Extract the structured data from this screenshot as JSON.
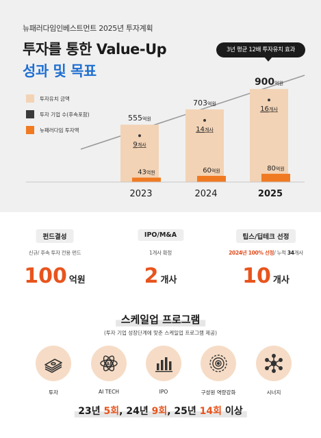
{
  "header": {
    "company": "뉴패러다임인베스트먼트 2025년 투자계획",
    "title_line1": "투자를 통한 Value-Up",
    "title_line2": "성과 및 목표",
    "callout": "3년 평균 12배 투자유치 효과"
  },
  "legend": [
    {
      "label": "투자유치 금액",
      "color": "#f3d3b5"
    },
    {
      "label": "투자 기업 수(후속포함)",
      "color": "#3a3a3a"
    },
    {
      "label": "뉴패러다임 투자액",
      "color": "#f07a22"
    }
  ],
  "chart_data": {
    "type": "bar",
    "categories": [
      "2023",
      "2024",
      "2025"
    ],
    "series": [
      {
        "name": "투자유치 금액",
        "values": [
          555,
          703,
          900
        ],
        "labels": [
          "555억원",
          "703억원",
          "900억원"
        ],
        "color": "#f3d3b5"
      },
      {
        "name": "투자 기업 수(후속포함)",
        "values": [
          9,
          14,
          16
        ],
        "labels": [
          "9개사",
          "14개사",
          "16개사"
        ],
        "color": "#3a3a3a"
      },
      {
        "name": "뉴패러다임 투자액",
        "values": [
          43,
          60,
          80
        ],
        "labels": [
          "43억원",
          "60억원",
          "80억원"
        ],
        "color": "#f07a22"
      }
    ],
    "title": "",
    "xlabel": "",
    "ylabel": "",
    "ylim": [
      0,
      1000
    ],
    "grid": false,
    "legend_position": "left"
  },
  "cards": [
    {
      "head": "펀드결성",
      "sub": "신규/ 후속 투자 전용 펀드",
      "num": "100",
      "unit": "억원"
    },
    {
      "head": "IPO/M&A",
      "sub": "1개사 확정",
      "num": "2",
      "unit": "개사"
    },
    {
      "head": "팁스/딥테크 선정",
      "sub_hl": "2024년 100% 선정",
      "sub_mid": "/ 누적 ",
      "sub_bk": "34",
      "sub_end": "개사",
      "num": "10",
      "unit": "개사"
    }
  ],
  "program": {
    "title": "스케일업 프로그램",
    "subtitle": "(투자 기업 성장단계에 맞춘 스케일업 프로그램 제공)",
    "items": [
      {
        "label": "투자",
        "icon": "money-stack-icon"
      },
      {
        "label": "AI TECH",
        "icon": "ai-chip-icon"
      },
      {
        "label": "IPO",
        "icon": "bar-chart-icon"
      },
      {
        "label": "구성원 역량강화",
        "icon": "target-icon"
      },
      {
        "label": "시너지",
        "icon": "network-icon"
      }
    ],
    "rounds": {
      "y1": "23년 ",
      "n1": "5회",
      "y2": ", 24년 ",
      "n2": "9회",
      "y3": ", 25년 ",
      "n3": "14회",
      "end": " 이상"
    }
  }
}
